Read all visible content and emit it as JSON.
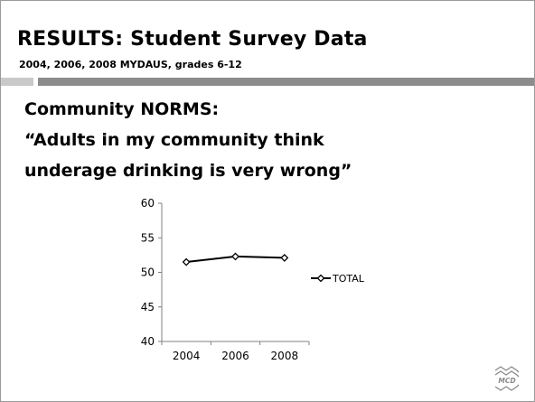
{
  "slide": {
    "title": "RESULTS: Student Survey Data",
    "subtitle": "2004, 2006, 2008 MYDAUS, grades 6-12",
    "lines": [
      "Community NORMS:",
      "“Adults in my community think",
      "underage drinking is very wrong”"
    ]
  },
  "chart_data": {
    "type": "line",
    "categories": [
      "2004",
      "2006",
      "2008"
    ],
    "series": [
      {
        "name": "TOTAL",
        "values": [
          51.5,
          52.3,
          52.1
        ],
        "color": "#000000",
        "marker": "diamond"
      }
    ],
    "ylim": [
      40,
      60
    ],
    "yticks": [
      "60",
      "55",
      "50",
      "45",
      "40"
    ],
    "grid": false,
    "legend": "right"
  },
  "logo": {
    "text": "MCD",
    "color": "#8a8a8a"
  }
}
